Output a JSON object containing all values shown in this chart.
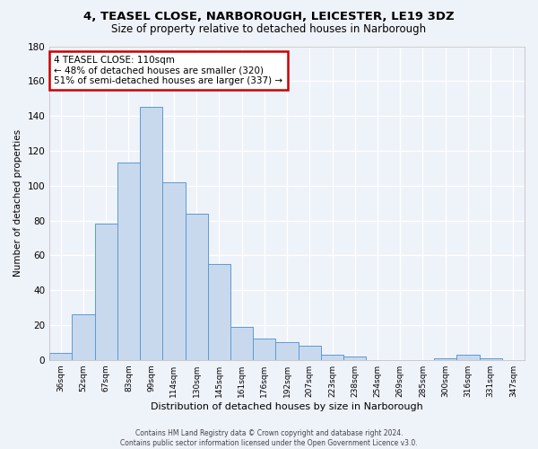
{
  "title1": "4, TEASEL CLOSE, NARBOROUGH, LEICESTER, LE19 3DZ",
  "title2": "Size of property relative to detached houses in Narborough",
  "xlabel": "Distribution of detached houses by size in Narborough",
  "ylabel": "Number of detached properties",
  "bar_labels": [
    "36sqm",
    "52sqm",
    "67sqm",
    "83sqm",
    "99sqm",
    "114sqm",
    "130sqm",
    "145sqm",
    "161sqm",
    "176sqm",
    "192sqm",
    "207sqm",
    "223sqm",
    "238sqm",
    "254sqm",
    "269sqm",
    "285sqm",
    "300sqm",
    "316sqm",
    "331sqm",
    "347sqm"
  ],
  "bar_values": [
    4,
    26,
    78,
    113,
    145,
    102,
    84,
    55,
    19,
    12,
    10,
    8,
    3,
    2,
    0,
    0,
    0,
    1,
    3,
    1,
    0
  ],
  "bar_color": "#c9d9ed",
  "bar_edge_color": "#5b9bd5",
  "subject_label": "4 TEASEL CLOSE: 110sqm",
  "annotation_line1": "← 48% of detached houses are smaller (320)",
  "annotation_line2": "51% of semi-detached houses are larger (337) →",
  "annotation_box_color": "#ffffff",
  "annotation_box_edge_color": "#cc0000",
  "ylim": [
    0,
    180
  ],
  "yticks": [
    0,
    20,
    40,
    60,
    80,
    100,
    120,
    140,
    160,
    180
  ],
  "background_color": "#eef2f9",
  "grid_color": "#ffffff",
  "footer1": "Contains HM Land Registry data © Crown copyright and database right 2024.",
  "footer2": "Contains public sector information licensed under the Open Government Licence v3.0."
}
